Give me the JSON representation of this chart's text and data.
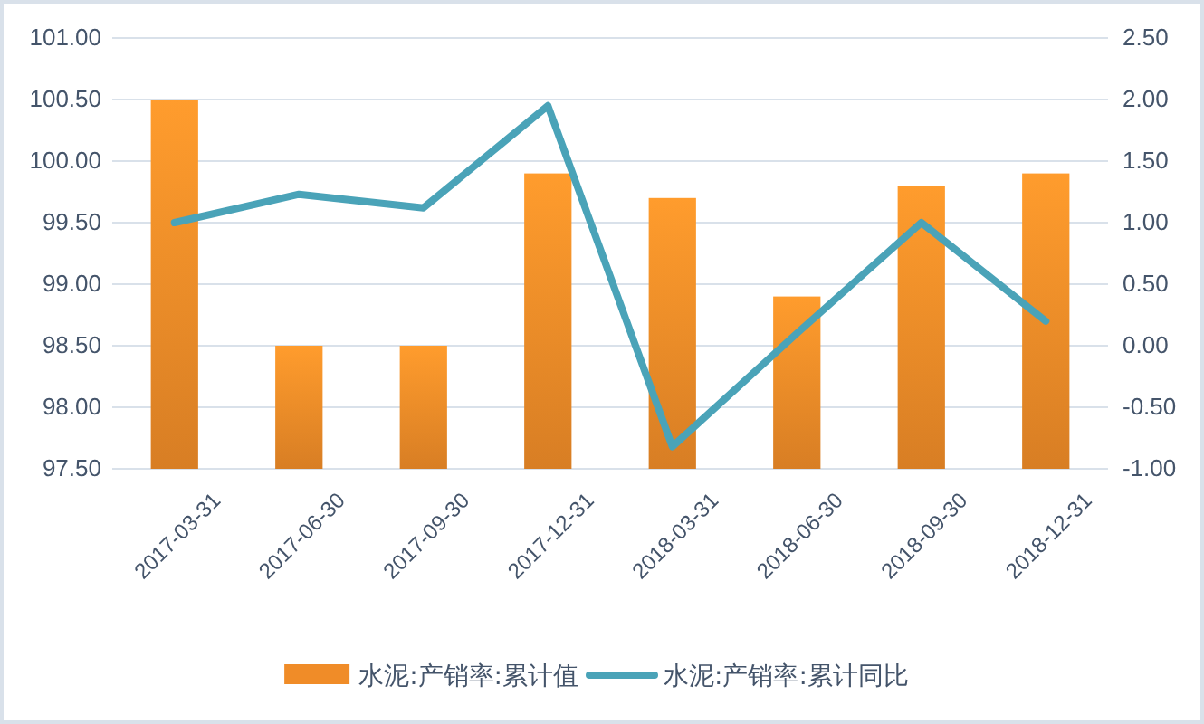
{
  "chart_data": {
    "type": "bar",
    "categories": [
      "2017-03-31",
      "2017-06-30",
      "2017-09-30",
      "2017-12-31",
      "2018-03-31",
      "2018-06-30",
      "2018-09-30",
      "2018-12-31"
    ],
    "series": [
      {
        "name": "水泥:产销率:累计值",
        "color": "#f08c28",
        "values": [
          100.5,
          98.5,
          98.5,
          99.9,
          99.7,
          98.9,
          99.8,
          99.9
        ]
      },
      {
        "name": "水泥:产销率:累计同比",
        "type": "line",
        "axis": "y2",
        "color": "#4aa3b8",
        "values": [
          1.0,
          1.23,
          1.12,
          1.95,
          -0.82,
          0.1,
          1.0,
          0.2
        ]
      }
    ],
    "ylim": [
      97.5,
      101
    ],
    "yticks": [
      {
        "value": 97.5,
        "label": "97.50"
      },
      {
        "value": 98,
        "label": "98.00"
      },
      {
        "value": 98.5,
        "label": "98.50"
      },
      {
        "value": 99,
        "label": "99.00"
      },
      {
        "value": 99.5,
        "label": "99.50"
      },
      {
        "value": 100,
        "label": "100.00"
      },
      {
        "value": 100.5,
        "label": "100.50"
      },
      {
        "value": 101,
        "label": "101.00"
      }
    ],
    "y2lim": [
      -1,
      2.5
    ],
    "y2ticks": [
      {
        "value": -1,
        "label": "-1.00"
      },
      {
        "value": -0.5,
        "label": "-0.50"
      },
      {
        "value": 0,
        "label": "0.00"
      },
      {
        "value": 0.5,
        "label": "0.50"
      },
      {
        "value": 1,
        "label": "1.00"
      },
      {
        "value": 1.5,
        "label": "1.50"
      },
      {
        "value": 2,
        "label": "2.00"
      },
      {
        "value": 2.5,
        "label": "2.50"
      }
    ],
    "grid": "y",
    "legend": "bottom",
    "marker": "none",
    "line_style": "solid"
  }
}
